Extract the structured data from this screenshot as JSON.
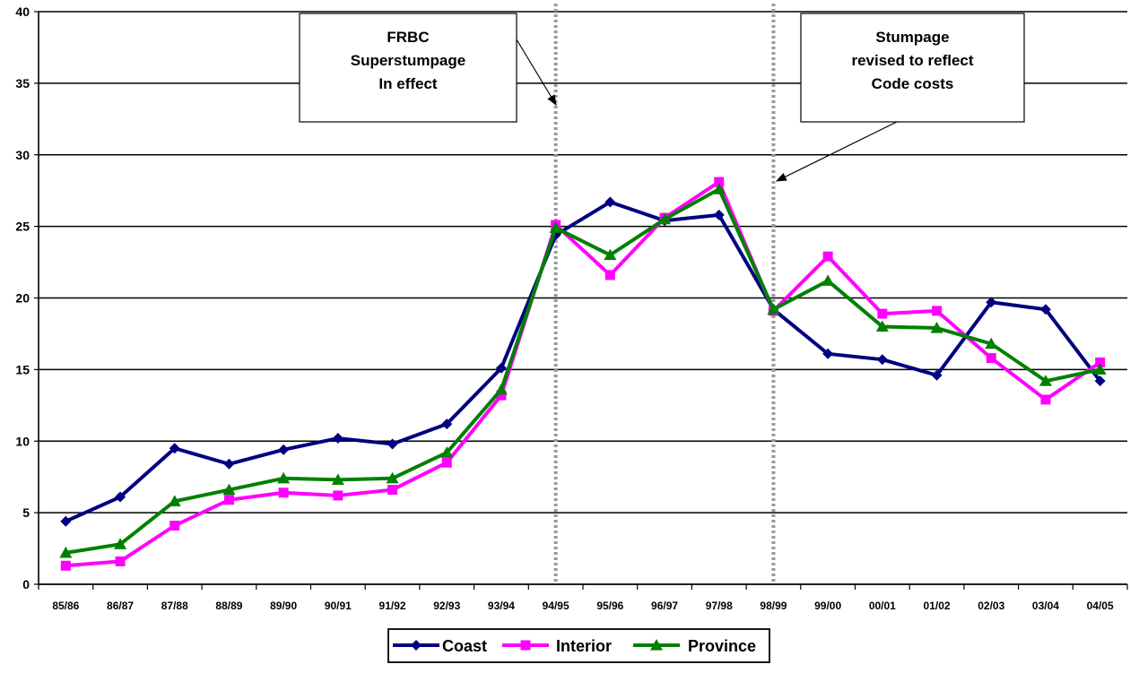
{
  "chart_data": {
    "type": "line",
    "categories": [
      "85/86",
      "86/87",
      "87/88",
      "88/89",
      "89/90",
      "90/91",
      "91/92",
      "92/93",
      "93/94",
      "94/95",
      "95/96",
      "96/97",
      "97/98",
      "98/99",
      "99/00",
      "00/01",
      "01/02",
      "02/03",
      "03/04",
      "04/05"
    ],
    "ylim": [
      0,
      40
    ],
    "yticks": [
      0,
      5,
      10,
      15,
      20,
      25,
      30,
      35,
      40
    ],
    "grid": true,
    "legend_position": "bottom",
    "series": [
      {
        "name": "Coast",
        "color": "#000080",
        "marker": "diamond",
        "values": [
          4.4,
          6.1,
          9.5,
          8.4,
          9.4,
          10.2,
          9.8,
          11.2,
          15.1,
          24.4,
          26.7,
          25.4,
          25.8,
          19.2,
          16.1,
          15.7,
          14.6,
          19.7,
          19.2,
          14.2
        ]
      },
      {
        "name": "Interior",
        "color": "#ff00ff",
        "marker": "square",
        "values": [
          1.3,
          1.6,
          4.1,
          5.9,
          6.4,
          6.2,
          6.6,
          8.5,
          13.2,
          25.1,
          21.6,
          25.6,
          28.1,
          19.1,
          22.9,
          18.9,
          19.1,
          15.8,
          12.9,
          15.5
        ]
      },
      {
        "name": "Province",
        "color": "#008000",
        "marker": "triangle",
        "values": [
          2.2,
          2.8,
          5.8,
          6.6,
          7.4,
          7.3,
          7.4,
          9.2,
          13.6,
          24.9,
          23.0,
          25.5,
          27.6,
          19.2,
          21.2,
          18.0,
          17.9,
          16.8,
          14.2,
          15.0
        ]
      }
    ],
    "annotations": [
      {
        "lines": [
          "FRBC",
          "Superstumpage",
          "In effect"
        ],
        "category": "94/95"
      },
      {
        "lines": [
          "Stumpage",
          "revised to reflect",
          "Code costs"
        ],
        "category": "98/99"
      }
    ]
  }
}
